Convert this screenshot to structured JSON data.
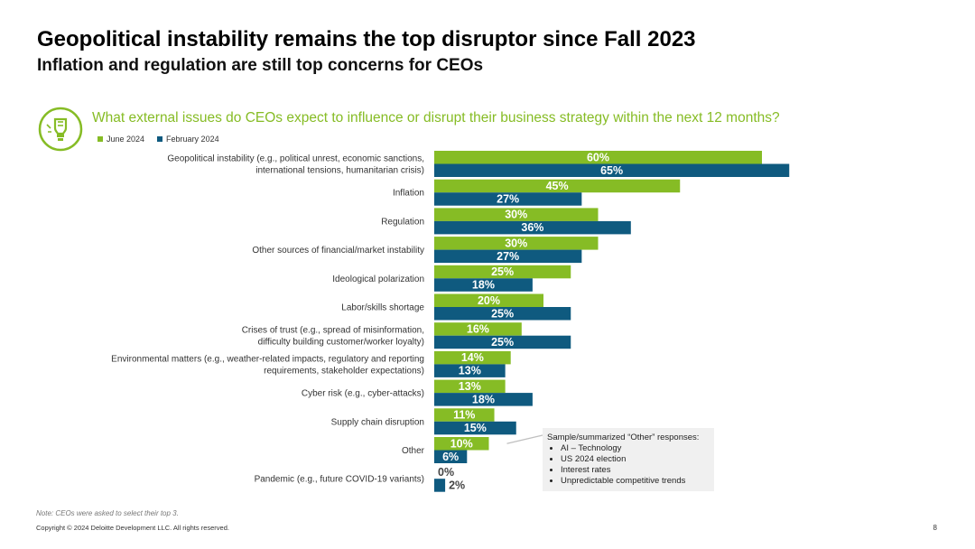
{
  "header": {
    "title": "Geopolitical instability remains the top disruptor since Fall 2023",
    "subtitle": "Inflation and regulation are still top concerns for CEOs"
  },
  "question": "What external issues do CEOs expect to influence or disrupt their business strategy within the next 12 months?",
  "icon": "lightbulb-icon",
  "colors": {
    "june": "#86bc25",
    "february": "#0f5a7f",
    "accent": "#86bc25"
  },
  "chart_data": {
    "type": "bar",
    "orientation": "horizontal",
    "categories": [
      [
        "Geopolitical instability (e.g., political unrest, economic sanctions,",
        "international tensions, humanitarian crisis)"
      ],
      [
        "Inflation"
      ],
      [
        "Regulation"
      ],
      [
        "Other sources of financial/market instability"
      ],
      [
        "Ideological polarization"
      ],
      [
        "Labor/skills shortage"
      ],
      [
        "Crises of trust (e.g., spread of misinformation,",
        "difficulty building customer/worker loyalty)"
      ],
      [
        "Environmental matters (e.g., weather-related impacts, regulatory and reporting",
        "requirements, stakeholder expectations)"
      ],
      [
        "Cyber risk (e.g., cyber-attacks)"
      ],
      [
        "Supply chain disruption"
      ],
      [
        "Other"
      ],
      [
        "Pandemic (e.g., future COVID-19 variants)"
      ]
    ],
    "series": [
      {
        "name": "June 2024",
        "values": [
          60,
          45,
          30,
          30,
          25,
          20,
          16,
          14,
          13,
          11,
          10,
          0
        ]
      },
      {
        "name": "February 2024",
        "values": [
          65,
          27,
          36,
          27,
          18,
          25,
          25,
          13,
          18,
          15,
          6,
          2
        ]
      }
    ],
    "value_suffix": "%",
    "legend_position": "top-left",
    "grid": false
  },
  "callout": {
    "title": "Sample/summarized “Other” responses:",
    "items": [
      "AI – Technology",
      "US 2024 election",
      "Interest rates",
      "Unpredictable competitive trends"
    ]
  },
  "footnote": "Note: CEOs were asked to select their top 3.",
  "copyright": "Copyright © 2024 Deloitte Development LLC. All rights reserved.",
  "page_number": "8"
}
